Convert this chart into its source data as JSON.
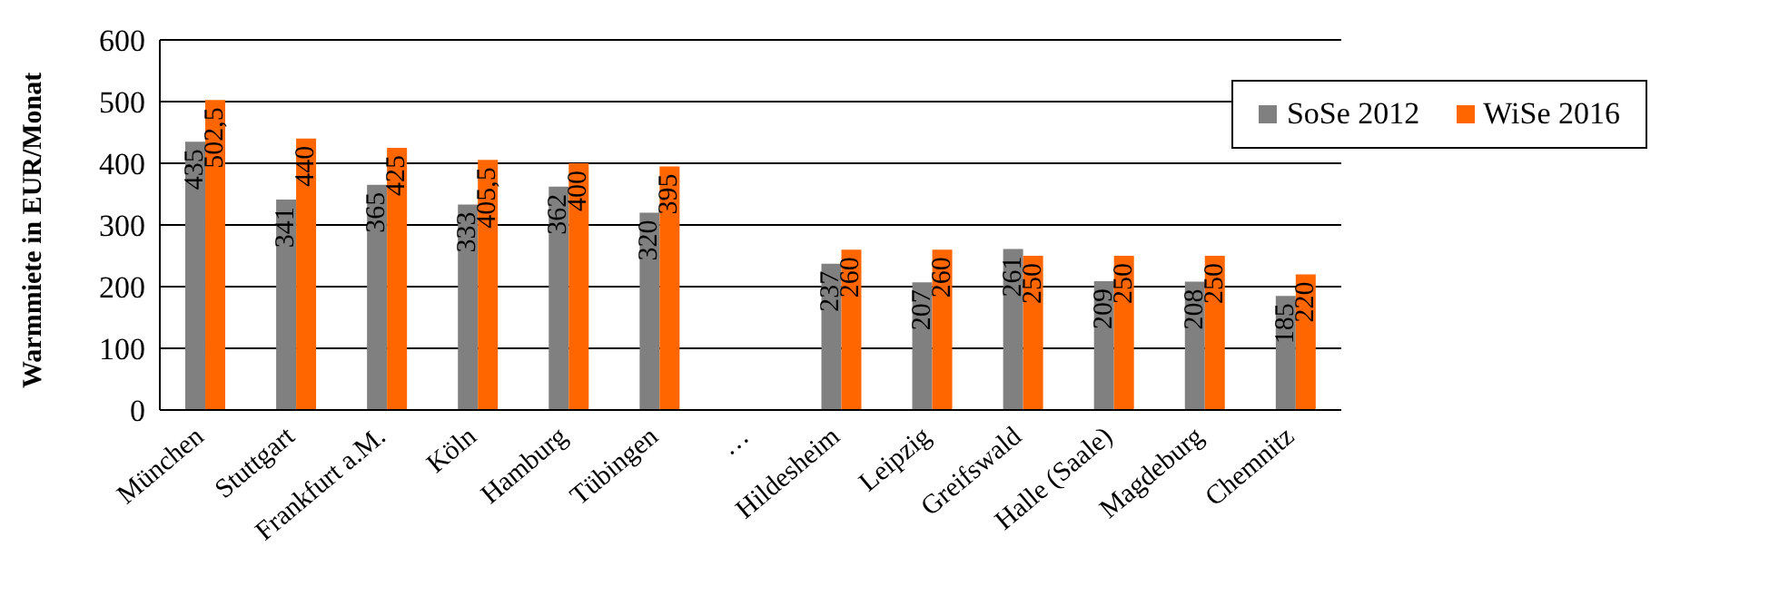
{
  "chart_data": {
    "type": "bar",
    "ylabel": "Warmmiete in EUR/Monat",
    "categories": [
      "München",
      "Stuttgart",
      "Frankfurt a.M.",
      "Köln",
      "Hamburg",
      "Tübingen",
      "…",
      "Hildesheim",
      "Leipzig",
      "Greifswald",
      "Halle (Saale)",
      "Magdeburg",
      "Chemnitz"
    ],
    "series": [
      {
        "name": "SoSe 2012",
        "color": "#808080",
        "values": [
          435,
          341,
          365,
          333,
          362,
          320,
          null,
          237,
          207,
          261,
          209,
          208,
          185
        ],
        "value_labels": [
          "435",
          "341",
          "365",
          "333",
          "362",
          "320",
          null,
          "237",
          "207",
          "261",
          "209",
          "208",
          "185"
        ]
      },
      {
        "name": "WiSe 2016",
        "color": "#ff6600",
        "values": [
          502.5,
          440,
          425,
          405.5,
          400,
          395,
          null,
          260,
          260,
          250,
          250,
          250,
          220
        ],
        "value_labels": [
          "502,5",
          "440",
          "425",
          "405,5",
          "400",
          "395",
          null,
          "260",
          "260",
          "250",
          "250",
          "250",
          "220"
        ]
      }
    ],
    "ylim": [
      0,
      600
    ],
    "yticks": [
      0,
      100,
      200,
      300,
      400,
      500,
      600
    ],
    "grid": "y",
    "legend": "top right"
  }
}
